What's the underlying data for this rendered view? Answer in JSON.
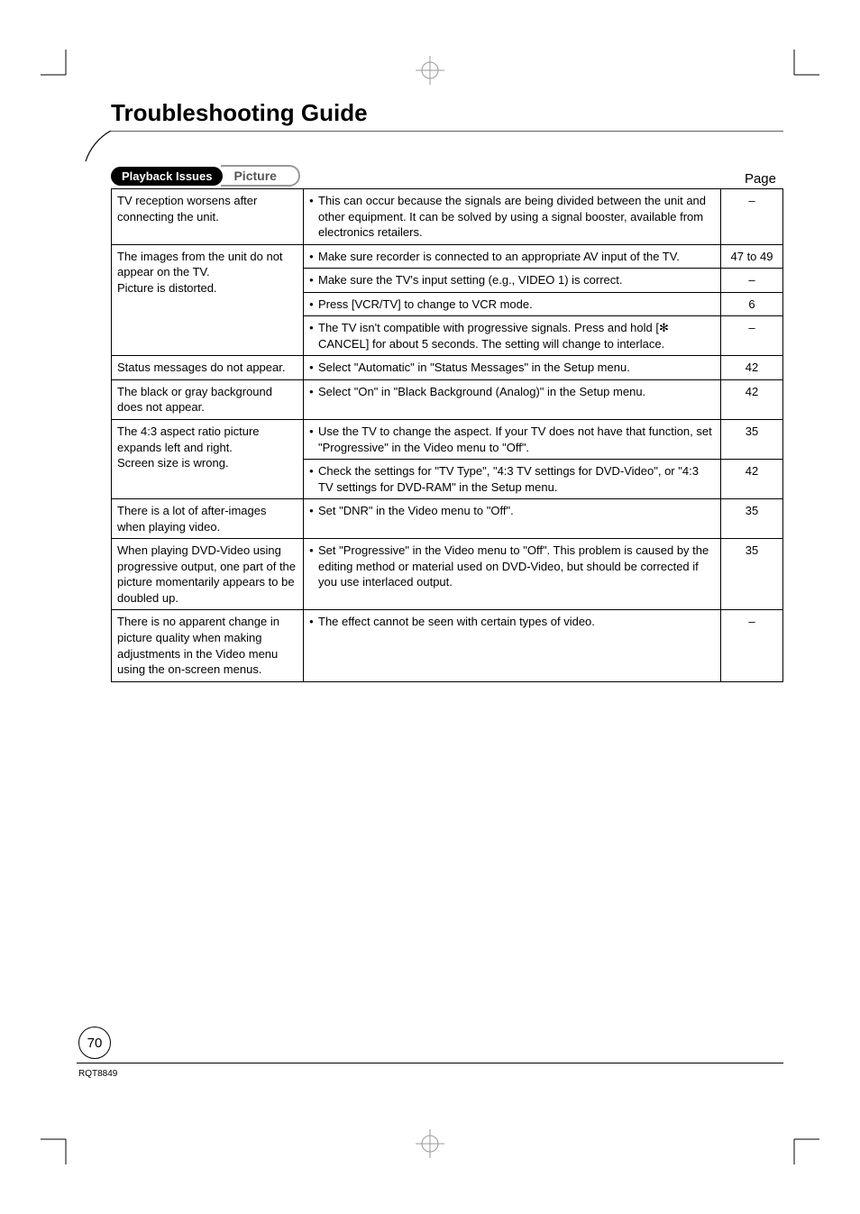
{
  "title": "Troubleshooting Guide",
  "tab_dark": "Playback Issues",
  "tab_light": "Picture",
  "page_label": "Page",
  "page_number": "70",
  "doc_code": "RQT8849",
  "rows": [
    {
      "issue": "TV reception worsens after connecting the unit.",
      "solutions": [
        {
          "text": "This can occur because the signals are being divided between the unit and other equipment. It can be solved by using a signal booster, available from electronics retailers.",
          "page": "–"
        }
      ]
    },
    {
      "issue": "The images from the unit do not appear on the TV.\nPicture is distorted.",
      "solutions": [
        {
          "text": "Make sure recorder is connected to an appropriate AV input of the TV.",
          "page": "47 to 49"
        },
        {
          "text": "Make sure the TV's input setting (e.g., VIDEO 1) is correct.",
          "page": "–"
        },
        {
          "text": "Press [VCR/TV] to change to VCR mode.",
          "page": "6"
        },
        {
          "text": "The TV isn't compatible with progressive signals. Press and hold [✻ CANCEL] for about 5 seconds. The setting will change to interlace.",
          "page": "–"
        }
      ]
    },
    {
      "issue": "Status messages do not appear.",
      "solutions": [
        {
          "text": "Select \"Automatic\" in \"Status Messages\" in the Setup menu.",
          "page": "42"
        }
      ]
    },
    {
      "issue": "The black or gray background does not appear.",
      "solutions": [
        {
          "text": "Select \"On\" in \"Black Background (Analog)\" in the Setup menu.",
          "page": "42"
        }
      ]
    },
    {
      "issue": "The 4:3 aspect ratio picture expands left and right.\nScreen size is wrong.",
      "solutions": [
        {
          "text": "Use the TV to change the aspect. If your TV does not have that function, set \"Progressive\" in the Video menu to \"Off\".",
          "page": "35"
        },
        {
          "text": "Check the settings for \"TV Type\", \"4:3 TV settings for DVD-Video\", or \"4:3 TV settings for DVD-RAM\" in the Setup menu.",
          "page": "42"
        }
      ]
    },
    {
      "issue": "There is a lot of after-images when playing video.",
      "solutions": [
        {
          "text": "Set \"DNR\" in the Video menu to \"Off\".",
          "page": "35"
        }
      ]
    },
    {
      "issue": "When playing DVD-Video using progressive output, one part of the picture momentarily appears to be doubled up.",
      "solutions": [
        {
          "text": "Set \"Progressive\" in the Video menu to \"Off\". This problem is caused by the editing method or material used on DVD-Video, but should be corrected if you use interlaced output.",
          "page": "35"
        }
      ]
    },
    {
      "issue": "There is no apparent change in picture quality when making adjustments in the Video menu using the on-screen menus.",
      "solutions": [
        {
          "text": "The effect cannot be seen with certain types of video.",
          "page": "–"
        }
      ]
    }
  ]
}
